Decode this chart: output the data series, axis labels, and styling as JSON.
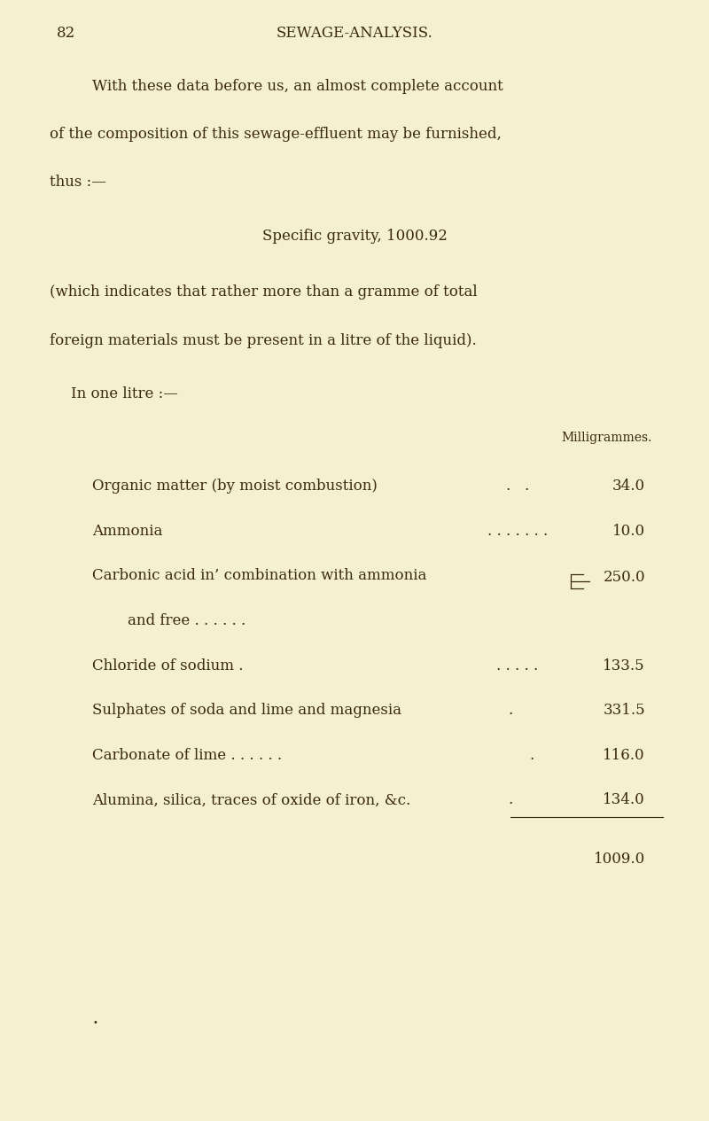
{
  "background_color": "#f5f0d0",
  "text_color": "#3a2a0a",
  "page_number": "82",
  "header": "SEWAGE-ANALYSIS.",
  "p1_lines": [
    "With these data before us, an almost complete account",
    "of the composition of this sewage-effluent may be furnished,",
    "thus :—"
  ],
  "specific_gravity_line": "Specific gravity, 1000.92",
  "p2_lines": [
    "(which indicates that rather more than a gramme of total",
    "foreign materials must be present in a litre of the liquid)."
  ],
  "in_one_litre": "In one litre :—",
  "milligrammes_label": "Milligrammes.",
  "row_organic_label": "Organic matter (by moist combustion)",
  "row_organic_dots": ".   .",
  "row_organic_value": "34.0",
  "row_ammonia_label": "Ammonia",
  "row_ammonia_dots": ". . . . . . .",
  "row_ammonia_value": "10.0",
  "row_carbonic_label": "Carbonic acid in’ combination with ammonia",
  "row_andfree_label": "and free . . . . . .",
  "row_carbonic_value": "250.0",
  "row_chloride_label": "Chloride of sodium .",
  "row_chloride_dots": ". . . . .",
  "row_chloride_value": "133.5",
  "row_sulphates_label": "Sulphates of soda and lime and magnesia",
  "row_sulphates_dot": ".",
  "row_sulphates_value": "331.5",
  "row_carbonate_label": "Carbonate of lime . . . . . .",
  "row_carbonate_dot": ".",
  "row_carbonate_value": "116.0",
  "row_alumina_label": "Alumina, silica, traces of oxide of iron, &c.",
  "row_alumina_dot": ".",
  "row_alumina_value": "134.0",
  "total_value": "1009.0",
  "font_size_header": 13,
  "font_size_body": 12,
  "font_size_small": 10
}
